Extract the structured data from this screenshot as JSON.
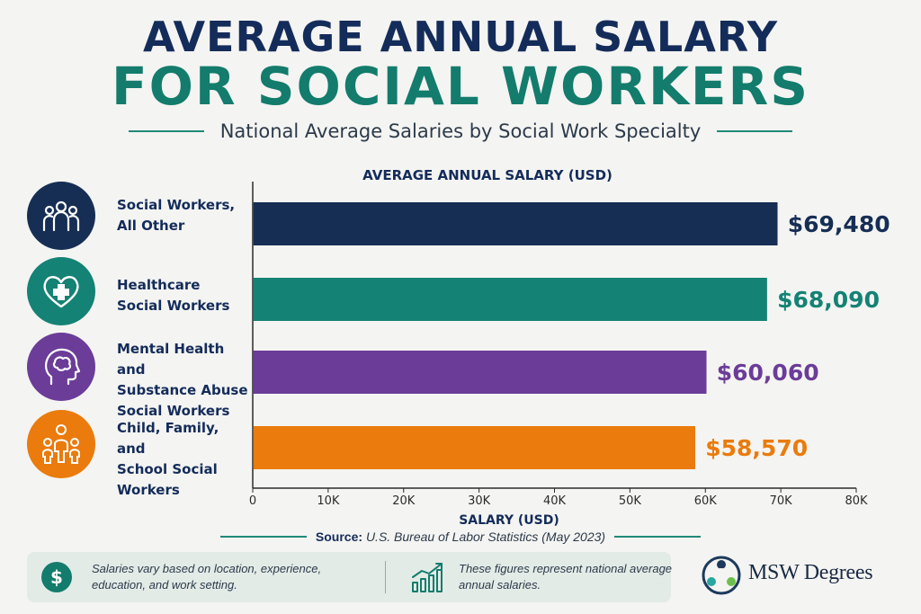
{
  "title_line1": "AVERAGE ANNUAL SALARY",
  "title_line2": "FOR SOCIAL WORKERS",
  "subtitle": "National Average Salaries by Social Work Specialty",
  "categories": [
    {
      "label_lines": [
        "Social Workers,",
        "All Other"
      ],
      "icon": "people-group-icon",
      "color": "#162e54"
    },
    {
      "label_lines": [
        "Healthcare",
        "Social Workers"
      ],
      "icon": "heart-plus-icon",
      "color": "#148274"
    },
    {
      "label_lines": [
        "Mental Health and",
        "Substance Abuse",
        "Social Workers"
      ],
      "icon": "head-brain-icon",
      "color": "#6b3c98"
    },
    {
      "label_lines": [
        "Child, Family, and",
        "School Social",
        "Workers"
      ],
      "icon": "family-icon",
      "color": "#ea7b0c"
    }
  ],
  "chart_data": {
    "type": "bar",
    "orientation": "horizontal",
    "title": "AVERAGE ANNUAL SALARY (USD)",
    "xlabel": "SALARY (USD)",
    "ylabel": "",
    "categories": [
      "Social Workers, All Other",
      "Healthcare Social Workers",
      "Mental Health and Substance Abuse Social Workers",
      "Child, Family, and School Social Workers"
    ],
    "values": [
      69480,
      68090,
      60060,
      58570
    ],
    "data_labels": [
      "$69,480",
      "$68,090",
      "$60,060",
      "$58,570"
    ],
    "colors": [
      "#162e54",
      "#148274",
      "#6b3c98",
      "#ea7b0c"
    ],
    "xlim": [
      0,
      80000
    ],
    "x_ticks": [
      0,
      10000,
      20000,
      30000,
      40000,
      50000,
      60000,
      70000,
      80000
    ],
    "x_tick_labels": [
      "0",
      "10K",
      "20K",
      "30K",
      "40K",
      "50K",
      "60K",
      "70K",
      "80K"
    ],
    "grid": false,
    "legend": "none"
  },
  "source": {
    "label": "Source:",
    "text": "U.S. Bureau of Labor Statistics (May 2023)"
  },
  "notes": {
    "note1": "Salaries vary based on location, experience, education, and work setting.",
    "note2": "These figures represent national average annual salaries.",
    "note1_icon": "dollar-circle-icon",
    "note2_icon": "growth-chart-icon"
  },
  "logo": {
    "text": "MSW Degrees",
    "icon": "msw-logo-icon"
  }
}
